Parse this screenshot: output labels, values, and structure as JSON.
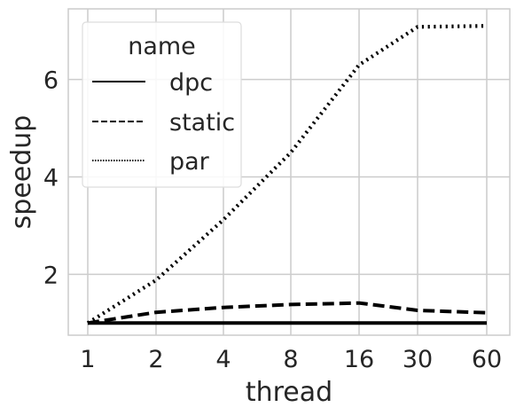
{
  "chart_data": {
    "type": "line",
    "x": [
      1,
      2,
      4,
      8,
      16,
      30,
      60
    ],
    "x_tick_labels": [
      "1",
      "2",
      "4",
      "8",
      "16",
      "30",
      "60"
    ],
    "y_ticks": [
      2,
      4,
      6
    ],
    "y_tick_labels": [
      "2",
      "4",
      "6"
    ],
    "ylim": [
      0.75,
      7.45
    ],
    "xlabel": "thread",
    "ylabel": "speedup",
    "grid": true,
    "legend": {
      "title": "name",
      "placement": "top-left"
    },
    "series": [
      {
        "name": "dpc",
        "line_style": "solid",
        "color": "#000000",
        "values": [
          1.0,
          1.0,
          1.0,
          1.0,
          1.0,
          1.0,
          1.0
        ]
      },
      {
        "name": "static",
        "line_style": "dashed",
        "color": "#000000",
        "values": [
          1.0,
          1.22,
          1.32,
          1.38,
          1.41,
          1.26,
          1.21
        ]
      },
      {
        "name": "par",
        "line_style": "dotted",
        "color": "#000000",
        "values": [
          1.0,
          1.88,
          3.12,
          4.5,
          6.3,
          7.08,
          7.1
        ]
      }
    ]
  }
}
